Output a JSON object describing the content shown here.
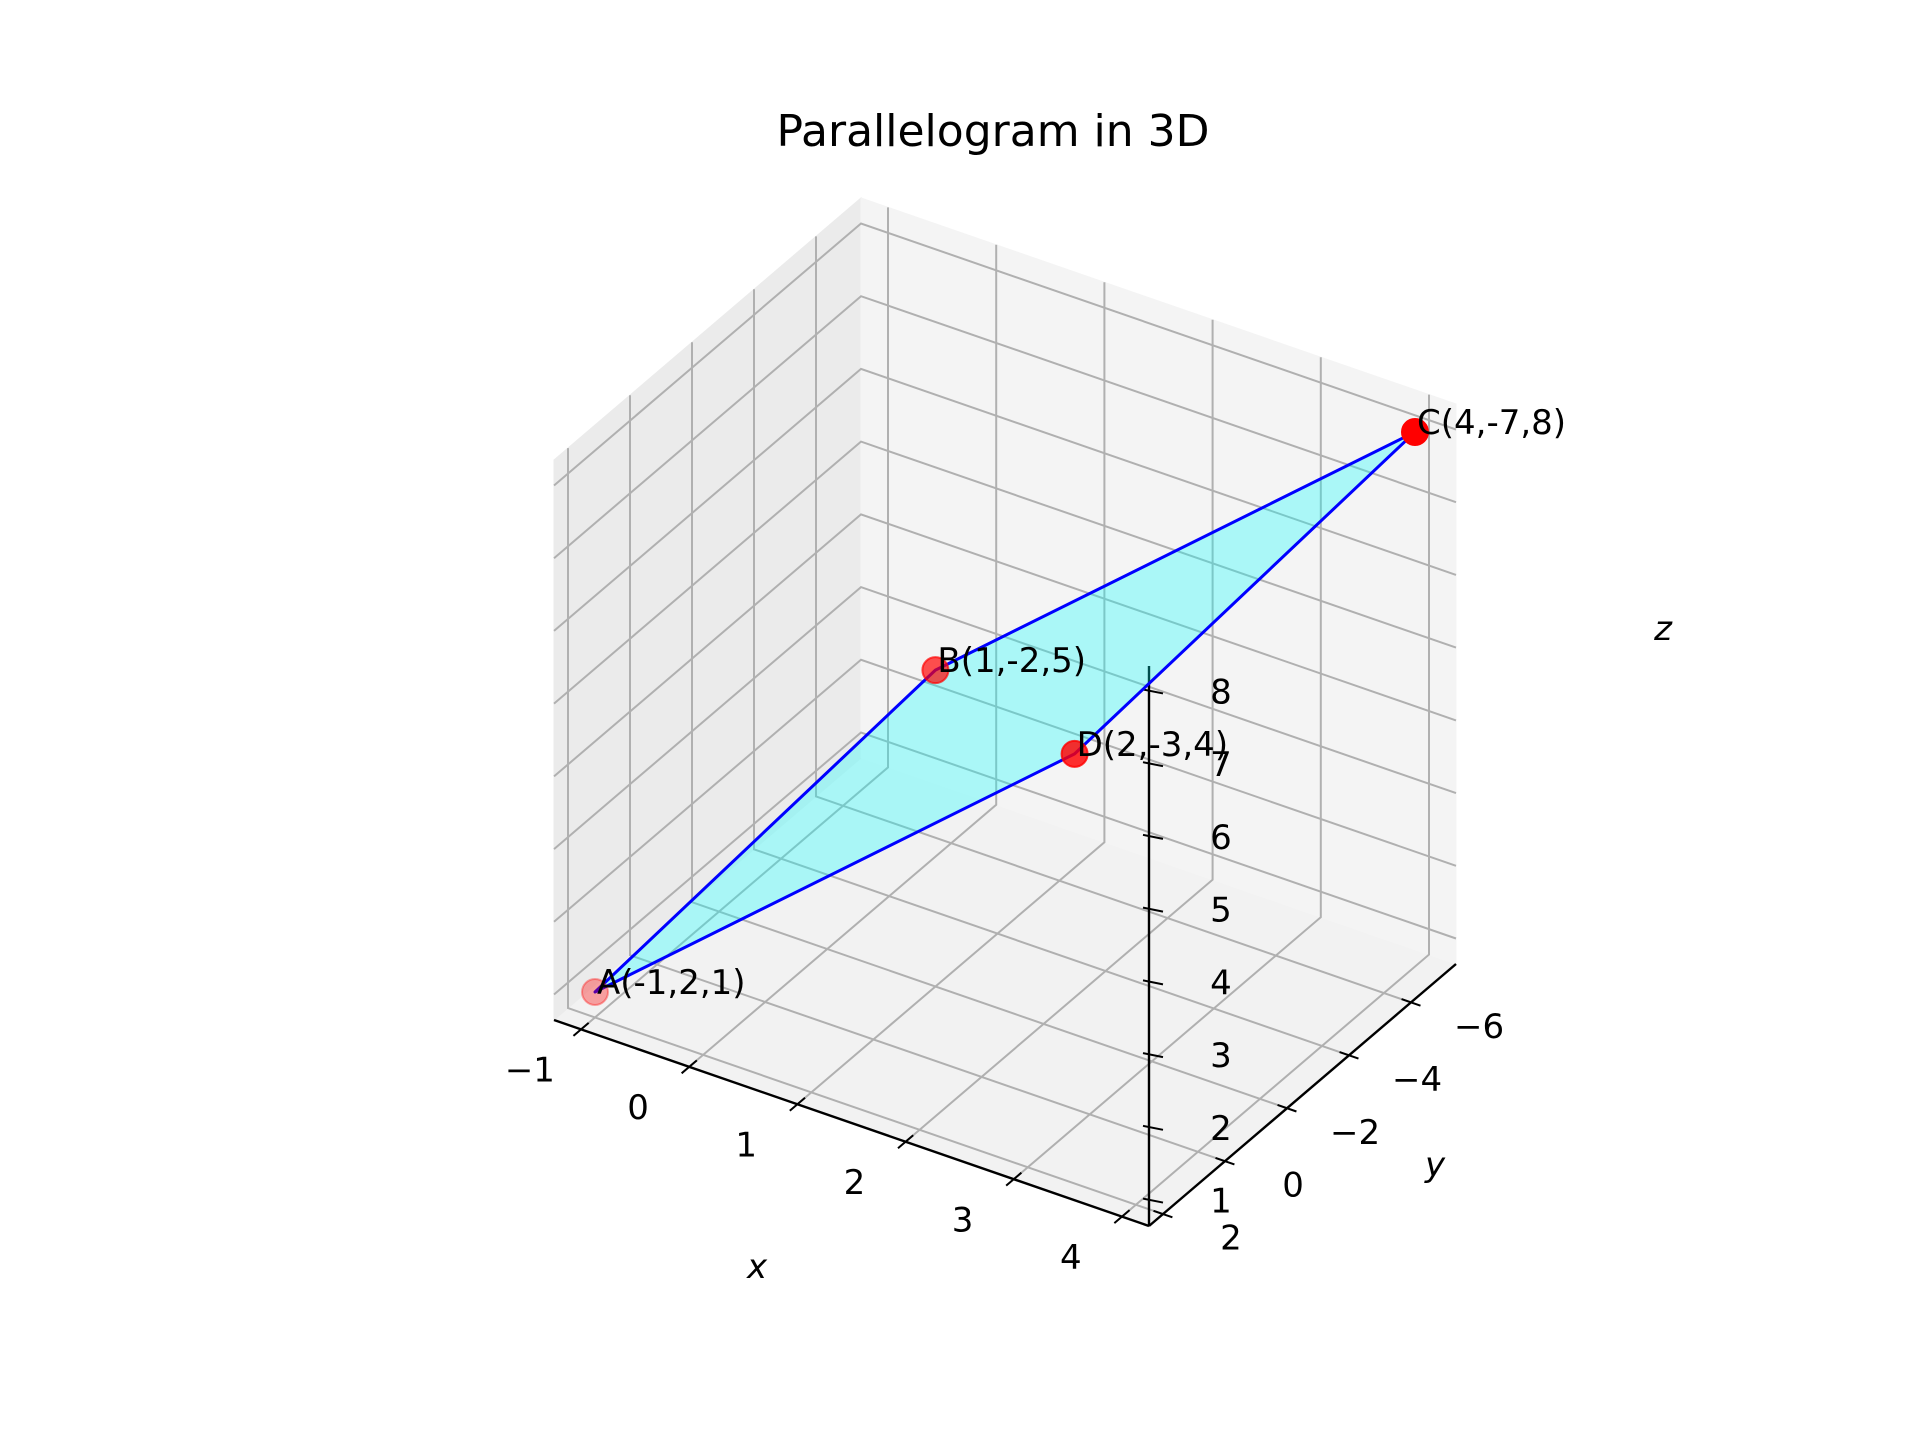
{
  "chart_data": {
    "type": "scatter",
    "projection": "3d",
    "title": "Parallelogram in 3D",
    "xlabel": "x",
    "ylabel": "y",
    "zlabel": "z",
    "xlim": [
      -1.25,
      4.25
    ],
    "ylim": [
      -7.45,
      2.45
    ],
    "zlim": [
      0.65,
      8.35
    ],
    "xticks": [
      -1,
      0,
      1,
      2,
      3,
      4
    ],
    "yticks": [
      -6,
      -4,
      -2,
      0,
      2
    ],
    "zticks": [
      1,
      2,
      3,
      4,
      5,
      6,
      7,
      8
    ],
    "grid": true,
    "points": [
      {
        "label": "A(-1,2,1)",
        "x": -1,
        "y": 2,
        "z": 1
      },
      {
        "label": "B(1,-2,5)",
        "x": 1,
        "y": -2,
        "z": 5
      },
      {
        "label": "C(4,-7,8)",
        "x": 4,
        "y": -7,
        "z": 8
      },
      {
        "label": "D(2,-3,4)",
        "x": 2,
        "y": -3,
        "z": 4
      }
    ],
    "polygon_order": [
      "A",
      "B",
      "C",
      "D"
    ],
    "colors": {
      "marker": "#ff0000",
      "edge": "#0000ff",
      "fill": "#00ffff",
      "pane": "#f2f2f2",
      "grid": "#b0b0b0"
    }
  }
}
